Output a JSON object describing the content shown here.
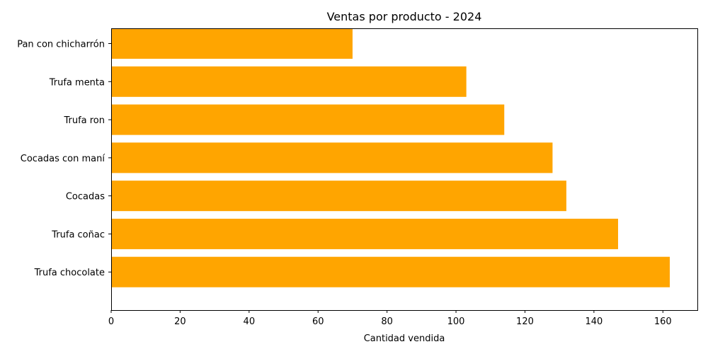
{
  "chart_data": {
    "type": "bar",
    "orientation": "horizontal",
    "title": "Ventas por producto - 2024",
    "xlabel": "Cantidad vendida",
    "ylabel": "",
    "categories": [
      "Trufa chocolate",
      "Trufa coñac",
      "Cocadas",
      "Cocadas con maní",
      "Trufa ron",
      "Trufa menta",
      "Pan con chicharrón"
    ],
    "values": [
      162,
      147,
      132,
      128,
      114,
      103,
      70
    ],
    "xlim": [
      0,
      170
    ],
    "xticks": [
      0,
      20,
      40,
      60,
      80,
      100,
      120,
      140,
      160
    ],
    "grid": false,
    "bar_color": "#ffa500"
  }
}
